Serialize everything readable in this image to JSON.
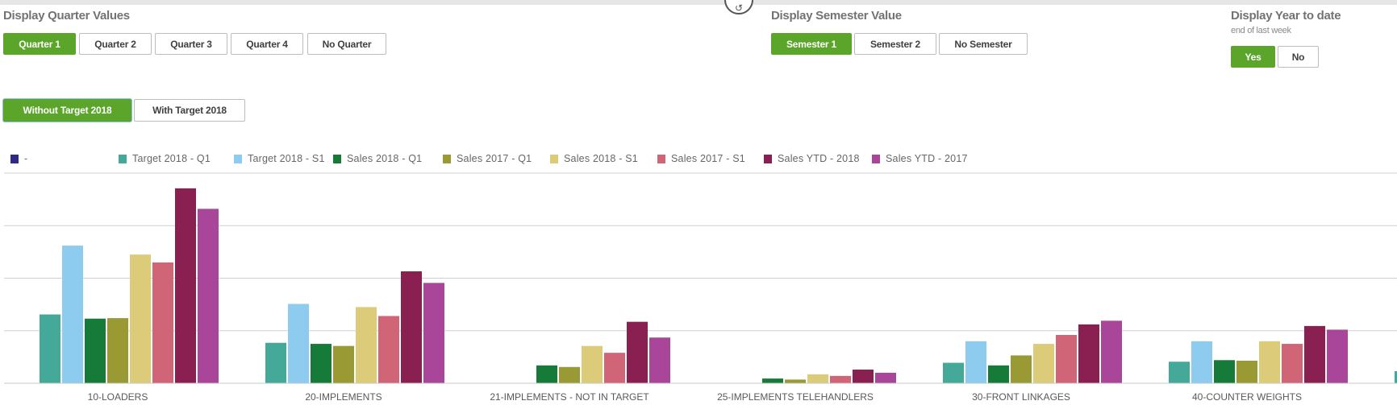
{
  "quarter": {
    "title": "Display Quarter Values",
    "buttons": [
      "Quarter 1",
      "Quarter 2",
      "Quarter 3",
      "Quarter 4",
      "No Quarter"
    ],
    "selected": 0
  },
  "semester": {
    "title": "Display Semester Value",
    "buttons": [
      "Semester 1",
      "Semester 2",
      "No Semester"
    ],
    "selected": 0
  },
  "ytd": {
    "title": "Display Year to date",
    "subtitle": "end of last week",
    "buttons": [
      "Yes",
      "No"
    ],
    "selected": 0
  },
  "target": {
    "buttons": [
      "Without Target 2018",
      "With Target 2018"
    ],
    "selected": 0
  },
  "icons": {
    "top_circle": "rotate-arrow-icon"
  },
  "colors": {
    "accent": "#5aa52a"
  },
  "chart_data": {
    "type": "bar",
    "grid": true,
    "y_axis_labels": false,
    "ylim": [
      0,
      4
    ],
    "legend_position": "top",
    "legend": [
      {
        "name": "-",
        "color": "#2e2a86"
      },
      {
        "name": "Target 2018 - Q1",
        "color": "#45a99a"
      },
      {
        "name": "Target 2018 - S1",
        "color": "#8dccee"
      },
      {
        "name": "Sales 2018 - Q1",
        "color": "#167a38"
      },
      {
        "name": "Sales 2017 - Q1",
        "color": "#9a9a34"
      },
      {
        "name": "Sales 2018 - S1",
        "color": "#dccb79"
      },
      {
        "name": "Sales 2017 - S1",
        "color": "#cf6576"
      },
      {
        "name": "Sales YTD - 2018",
        "color": "#8a1f52"
      },
      {
        "name": "Sales YTD - 2017",
        "color": "#a94699"
      }
    ],
    "categories": [
      "10-LOADERS",
      "20-IMPLEMENTS",
      "21-IMPLEMENTS - NOT IN TARGET",
      "25-IMPLEMENTS TELEHANDLERS",
      "30-FRONT LINKAGES",
      "40-COUNTER WEIGHTS",
      ""
    ],
    "series": [
      {
        "name": "Target 2018 - Q1",
        "values": [
          1.31,
          0.77,
          0,
          0,
          0.39,
          0.41,
          0.23
        ]
      },
      {
        "name": "Target 2018 - S1",
        "values": [
          2.62,
          1.51,
          0,
          0,
          0.8,
          0.8,
          null
        ]
      },
      {
        "name": "Sales 2018 - Q1",
        "values": [
          1.23,
          0.75,
          0.34,
          0.09,
          0.34,
          0.44,
          null
        ]
      },
      {
        "name": "Sales 2017 - Q1",
        "values": [
          1.24,
          0.71,
          0.31,
          0.07,
          0.53,
          0.43,
          null
        ]
      },
      {
        "name": "Sales 2018 - S1",
        "values": [
          2.45,
          1.45,
          0.71,
          0.17,
          0.75,
          0.8,
          null
        ]
      },
      {
        "name": "Sales 2017 - S1",
        "values": [
          2.3,
          1.28,
          0.58,
          0.14,
          0.92,
          0.75,
          null
        ]
      },
      {
        "name": "Sales YTD - 2018",
        "values": [
          3.71,
          2.13,
          1.17,
          0.26,
          1.12,
          1.09,
          null
        ]
      },
      {
        "name": "Sales YTD - 2017",
        "values": [
          3.32,
          1.91,
          0.87,
          0.2,
          1.19,
          1.02,
          null
        ]
      }
    ]
  }
}
